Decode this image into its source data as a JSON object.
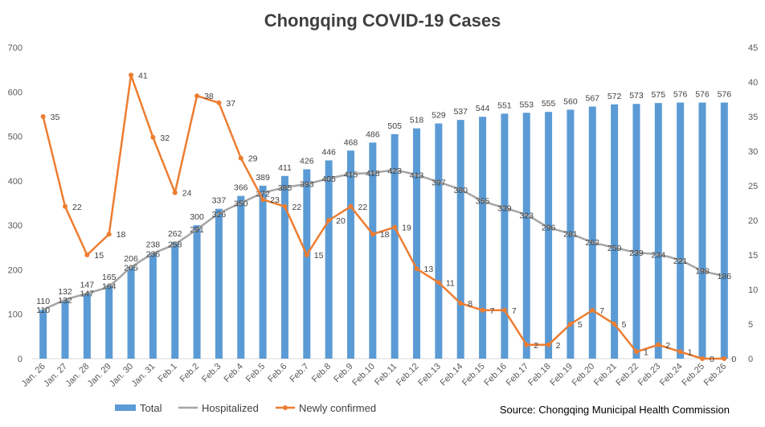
{
  "chart_data": {
    "type": "bar",
    "title": "Chongqing COVID-19 Cases",
    "source": "Source: Chongqing Municipal Health Commission",
    "categories": [
      "Jan. 26",
      "Jan. 27",
      "Jan. 28",
      "Jan. 29",
      "Jan. 30",
      "Jan. 31",
      "Feb.1",
      "Feb.2",
      "Feb.3",
      "Feb.4",
      "Feb.5",
      "Feb.6",
      "Feb.7",
      "Feb.8",
      "Feb.9",
      "Feb.10",
      "Feb.11",
      "Feb.12",
      "Feb.13",
      "Feb.14",
      "Feb.15",
      "Feb.16",
      "Feb.17",
      "Feb.18",
      "Feb.19",
      "Feb.20",
      "Feb.21",
      "Feb.22",
      "Feb.23",
      "Feb.24",
      "Feb.25",
      "Feb.26"
    ],
    "series": [
      {
        "name": "Total",
        "type": "bar",
        "axis": "left",
        "color": "#5B9BD5",
        "values": [
          110,
          132,
          147,
          165,
          206,
          238,
          262,
          300,
          337,
          366,
          389,
          411,
          426,
          446,
          468,
          486,
          505,
          518,
          529,
          537,
          544,
          551,
          553,
          555,
          560,
          567,
          572,
          573,
          575,
          576,
          576,
          576
        ]
      },
      {
        "name": "Hospitalized",
        "type": "line",
        "axis": "left",
        "color": "#A5A5A5",
        "values": [
          110,
          132,
          147,
          164,
          205,
          236,
          258,
          291,
          326,
          350,
          372,
          385,
          393,
          405,
          415,
          418,
          423,
          413,
          397,
          380,
          355,
          339,
          323,
          296,
          281,
          262,
          250,
          239,
          234,
          221,
          198,
          186
        ]
      },
      {
        "name": "Newly confirmed",
        "type": "line",
        "axis": "right",
        "color": "#ED7D31",
        "values": [
          35,
          22,
          15,
          18,
          41,
          32,
          24,
          38,
          37,
          29,
          23,
          22,
          15,
          20,
          22,
          18,
          19,
          13,
          11,
          8,
          7,
          7,
          2,
          2,
          5,
          7,
          5,
          1,
          2,
          1,
          0,
          0
        ]
      }
    ],
    "y_left": {
      "min": 0,
      "max": 700,
      "step": 100,
      "ticks": [
        "0",
        "100",
        "200",
        "300",
        "400",
        "500",
        "600",
        "700"
      ]
    },
    "y_right": {
      "min": 0,
      "max": 45,
      "step": 5,
      "ticks": [
        "0",
        "5",
        "10",
        "15",
        "20",
        "25",
        "30",
        "35",
        "40",
        "45"
      ]
    },
    "grid": false,
    "legend_position": "bottom-left"
  }
}
